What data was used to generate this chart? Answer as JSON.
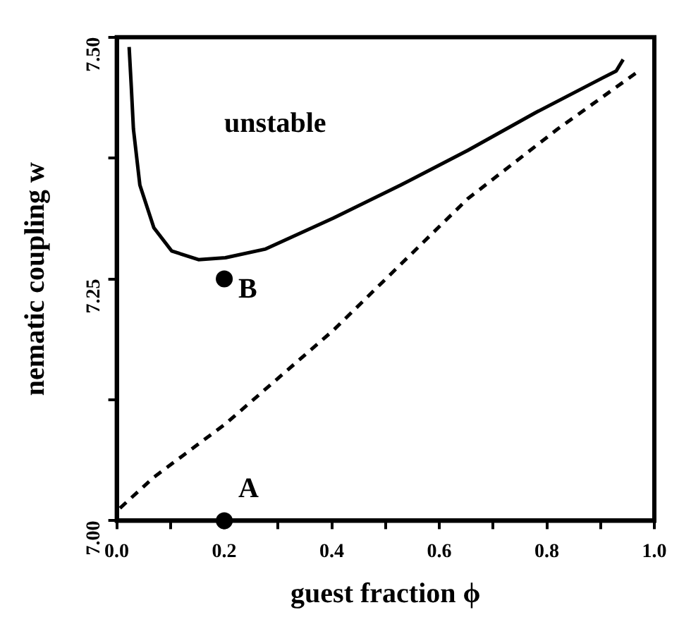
{
  "chart_data": {
    "type": "line",
    "xlabel": "guest fraction ϕ",
    "ylabel": "nematic coupling w",
    "xlim": [
      0,
      1
    ],
    "ylim": [
      7.0,
      7.5
    ],
    "xticks": [
      {
        "value": 0.0,
        "label": "0.0"
      },
      {
        "value": 0.1,
        "label": null
      },
      {
        "value": 0.2,
        "label": "0.2"
      },
      {
        "value": 0.3,
        "label": null
      },
      {
        "value": 0.4,
        "label": "0.4"
      },
      {
        "value": 0.5,
        "label": null
      },
      {
        "value": 0.6,
        "label": "0.6"
      },
      {
        "value": 0.7,
        "label": null
      },
      {
        "value": 0.8,
        "label": "0.8"
      },
      {
        "value": 0.9,
        "label": null
      },
      {
        "value": 1.0,
        "label": "1.0"
      }
    ],
    "yticks": [
      {
        "value": 7.0,
        "label": "7.00"
      },
      {
        "value": 7.125,
        "label": null
      },
      {
        "value": 7.25,
        "label": "7.25"
      },
      {
        "value": 7.375,
        "label": null
      },
      {
        "value": 7.5,
        "label": "7.50"
      }
    ],
    "grid": false,
    "legend": false,
    "series": [
      {
        "color": "#000000",
        "line_style": "solid",
        "marker": "none",
        "x": [
          0.023,
          0.027,
          0.031,
          0.043,
          0.069,
          0.102,
          0.152,
          0.202,
          0.277,
          0.403,
          0.528,
          0.653,
          0.779,
          0.904,
          0.929,
          0.942
        ],
        "values": [
          7.49,
          7.449,
          7.405,
          7.347,
          7.303,
          7.279,
          7.27,
          7.272,
          7.281,
          7.313,
          7.347,
          7.383,
          7.422,
          7.458,
          7.465,
          7.477
        ]
      },
      {
        "color": "#000000",
        "line_style": "dashed",
        "marker": "none",
        "x": [
          0.006,
          0.069,
          0.202,
          0.403,
          0.653,
          0.82,
          0.971
        ],
        "values": [
          7.013,
          7.045,
          7.1,
          7.197,
          7.333,
          7.405,
          7.465
        ]
      },
      {
        "type": "scatter",
        "color": "#000000",
        "marker": "circle",
        "x": [
          0.2,
          0.2
        ],
        "values": [
          7.0,
          7.25
        ]
      }
    ],
    "annotations": [
      "unstable",
      {
        "text": "B",
        "x": 0.2,
        "y": 7.25
      },
      {
        "text": "A",
        "x": 0.2,
        "y": 7.0
      }
    ]
  }
}
